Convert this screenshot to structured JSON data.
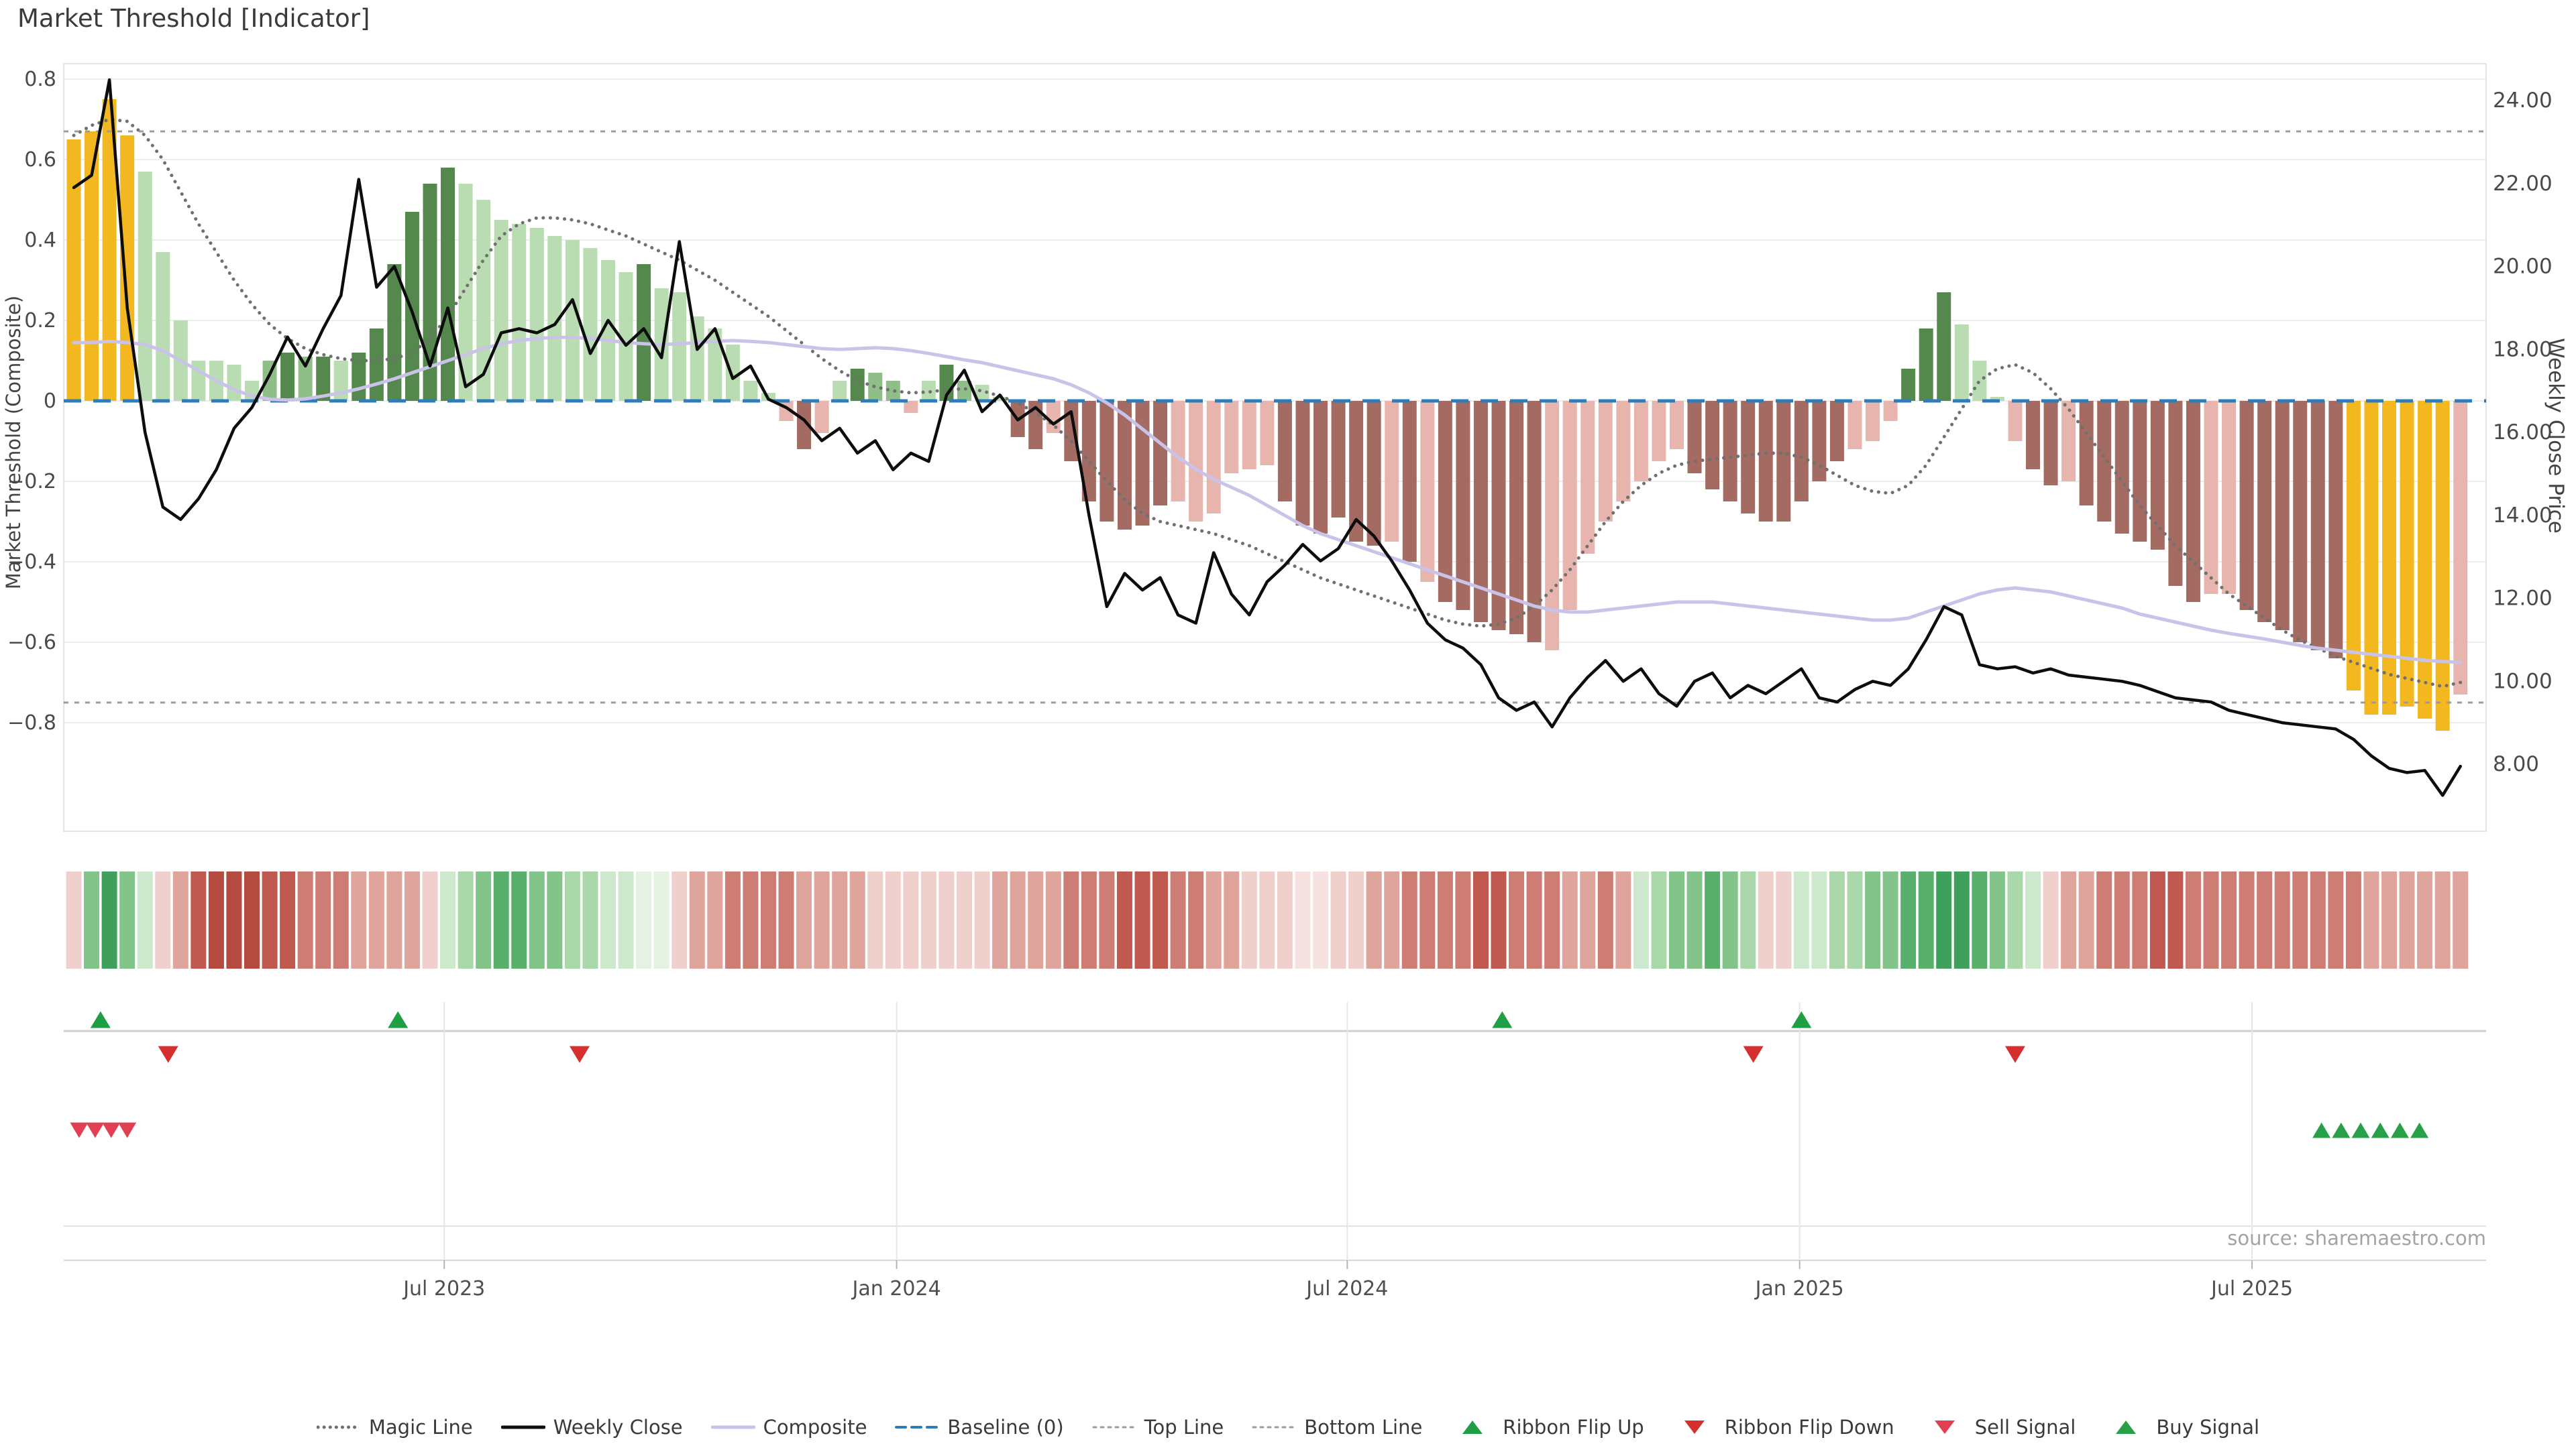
{
  "title": "Market Threshold [Indicator]",
  "source": "source: sharemaestro.com",
  "axes": {
    "left": {
      "label": "Market Threshold (Composite)",
      "ticks": [
        "0.8",
        "0.6",
        "0.4",
        "0.2",
        "0",
        "−0.2",
        "−0.4",
        "−0.6",
        "−0.8"
      ],
      "tick_values": [
        0.8,
        0.6,
        0.4,
        0.2,
        0,
        -0.2,
        -0.4,
        -0.6,
        -0.8
      ]
    },
    "right": {
      "label": "Weekly Close Price",
      "ticks": [
        "24.00",
        "22.00",
        "20.00",
        "18.00",
        "16.00",
        "14.00",
        "12.00",
        "10.00",
        "8.00"
      ],
      "tick_values": [
        24,
        22,
        20,
        18,
        16,
        14,
        12,
        10,
        8
      ]
    },
    "x": {
      "ticks": [
        {
          "label": "Jul 2023",
          "week": 20.8
        },
        {
          "label": "Jan 2024",
          "week": 46.2
        },
        {
          "label": "Jul 2024",
          "week": 71.5
        },
        {
          "label": "Jan 2025",
          "week": 96.9
        },
        {
          "label": "Jul 2025",
          "week": 122.3
        }
      ]
    }
  },
  "legend": {
    "items": [
      {
        "label": "Magic Line",
        "marker": "dotted-line",
        "color": "#707070"
      },
      {
        "label": "Weekly Close",
        "marker": "solid-line",
        "color": "#0d0d0d"
      },
      {
        "label": "Composite",
        "marker": "solid-line",
        "color": "#c9c3ea"
      },
      {
        "label": "Baseline (0)",
        "marker": "dashed-line",
        "color": "#2d7dbb"
      },
      {
        "label": "Top Line",
        "marker": "fine-dotted-line",
        "color": "#9c9c9c"
      },
      {
        "label": "Bottom Line",
        "marker": "fine-dotted-line",
        "color": "#9c9c9c"
      },
      {
        "label": "Ribbon Flip Up",
        "marker": "triangle-up",
        "color": "#1f9e44"
      },
      {
        "label": "Ribbon Flip Down",
        "marker": "triangle-down",
        "color": "#d62f2f"
      },
      {
        "label": "Sell Signal",
        "marker": "triangle-down",
        "color": "#e04050"
      },
      {
        "label": "Buy Signal",
        "marker": "triangle-up",
        "color": "#28a048"
      }
    ]
  },
  "palette": {
    "bars": {
      "au": "#f3b71f",
      "lg": "#b9dcb2",
      "mg": "#8fbe88",
      "dg": "#55884c",
      "pk": "#e7b5ad",
      "dr": "#a46b62"
    },
    "ribbon": {
      "P0": "#f6e3e1",
      "P1": "#f0d0cd",
      "P2": "#dfa49c",
      "P3": "#cd7d73",
      "P4": "#c05a50",
      "P5": "#b44a40",
      "G0": "#e4f1e3",
      "G1": "#cde8cc",
      "G2": "#abd8ab",
      "G3": "#83c48b",
      "G4": "#58b06c",
      "G5": "#3fa05c"
    },
    "weekly_close": "#0d0d0d",
    "composite": "#c9c3ea",
    "magic_line": "#707070",
    "baseline": "#2d7dbb",
    "top_bottom_line": "#9c9c9c",
    "grid": "#ededed",
    "panel_line": "#d8d8d8",
    "flip_up": "#1f9e44",
    "flip_down": "#d62f2f",
    "sell": "#e04050",
    "buy": "#28a048",
    "tick_text": "#4a4a4a"
  },
  "chart_data": {
    "type": "combo",
    "x_unit": "week-index",
    "n_points": 135,
    "ylim_left": [
      -0.9,
      0.85
    ],
    "ylim_right": [
      7.0,
      24.6
    ],
    "grid": "horizontal",
    "legend_position": "bottom-center",
    "constants": {
      "baseline": 0,
      "top_line": 0.67,
      "bottom_line": -0.75
    },
    "bars": {
      "name": "Market Threshold (Composite)",
      "values": [
        0.65,
        0.67,
        0.75,
        0.66,
        0.57,
        0.37,
        0.2,
        0.1,
        0.1,
        0.09,
        0.05,
        0.1,
        0.12,
        0.11,
        0.11,
        0.1,
        0.12,
        0.18,
        0.34,
        0.47,
        0.54,
        0.58,
        0.54,
        0.5,
        0.45,
        0.44,
        0.43,
        0.41,
        0.4,
        0.38,
        0.35,
        0.32,
        0.34,
        0.28,
        0.27,
        0.21,
        0.18,
        0.14,
        0.05,
        0.02,
        -0.05,
        -0.12,
        -0.08,
        0.05,
        0.08,
        0.07,
        0.05,
        -0.03,
        0.05,
        0.09,
        0.05,
        0.04,
        0.01,
        -0.09,
        -0.12,
        -0.08,
        -0.15,
        -0.25,
        -0.3,
        -0.32,
        -0.31,
        -0.26,
        -0.25,
        -0.3,
        -0.28,
        -0.18,
        -0.17,
        -0.16,
        -0.25,
        -0.31,
        -0.33,
        -0.29,
        -0.35,
        -0.36,
        -0.35,
        -0.4,
        -0.45,
        -0.5,
        -0.52,
        -0.55,
        -0.57,
        -0.58,
        -0.6,
        -0.62,
        -0.52,
        -0.38,
        -0.3,
        -0.25,
        -0.2,
        -0.15,
        -0.12,
        -0.18,
        -0.22,
        -0.25,
        -0.28,
        -0.3,
        -0.3,
        -0.25,
        -0.2,
        -0.15,
        -0.12,
        -0.1,
        -0.05,
        0.08,
        0.18,
        0.27,
        0.19,
        0.1,
        0.01,
        -0.1,
        -0.17,
        -0.21,
        -0.2,
        -0.26,
        -0.3,
        -0.33,
        -0.35,
        -0.37,
        -0.46,
        -0.5,
        -0.48,
        -0.48,
        -0.52,
        -0.55,
        -0.57,
        -0.6,
        -0.62,
        -0.64,
        -0.72,
        -0.78,
        -0.78,
        -0.76,
        -0.79,
        -0.82,
        -0.73
      ],
      "color_class": [
        "au",
        "au",
        "au",
        "au",
        "lg",
        "lg",
        "lg",
        "lg",
        "lg",
        "lg",
        "lg",
        "mg",
        "dg",
        "mg",
        "dg",
        "lg",
        "dg",
        "dg",
        "dg",
        "dg",
        "dg",
        "dg",
        "lg",
        "lg",
        "lg",
        "lg",
        "lg",
        "lg",
        "lg",
        "lg",
        "lg",
        "lg",
        "dg",
        "lg",
        "lg",
        "lg",
        "lg",
        "lg",
        "lg",
        "lg",
        "pk",
        "dr",
        "pk",
        "lg",
        "dg",
        "mg",
        "mg",
        "pk",
        "lg",
        "dg",
        "mg",
        "lg",
        "lg",
        "dr",
        "dr",
        "pk",
        "dr",
        "dr",
        "dr",
        "dr",
        "dr",
        "dr",
        "pk",
        "pk",
        "pk",
        "pk",
        "pk",
        "pk",
        "dr",
        "dr",
        "dr",
        "dr",
        "dr",
        "dr",
        "pk",
        "dr",
        "pk",
        "dr",
        "dr",
        "dr",
        "dr",
        "dr",
        "dr",
        "pk",
        "pk",
        "pk",
        "pk",
        "pk",
        "pk",
        "pk",
        "pk",
        "dr",
        "dr",
        "dr",
        "dr",
        "dr",
        "dr",
        "dr",
        "dr",
        "dr",
        "pk",
        "pk",
        "pk",
        "dg",
        "dg",
        "dg",
        "lg",
        "lg",
        "lg",
        "pk",
        "dr",
        "dr",
        "pk",
        "dr",
        "dr",
        "dr",
        "dr",
        "dr",
        "dr",
        "dr",
        "pk",
        "pk",
        "dr",
        "dr",
        "dr",
        "dr",
        "dr",
        "dr",
        "au",
        "au",
        "au",
        "au",
        "au",
        "au",
        "pk"
      ]
    },
    "lines": {
      "weekly_close": {
        "axis": "right",
        "values": [
          21.9,
          22.2,
          24.5,
          19.0,
          16.0,
          14.2,
          13.9,
          14.4,
          15.1,
          16.1,
          16.6,
          17.4,
          18.3,
          17.6,
          18.5,
          19.3,
          22.1,
          19.5,
          20.0,
          18.9,
          17.6,
          19.0,
          17.1,
          17.4,
          18.4,
          18.5,
          18.4,
          18.6,
          19.2,
          17.9,
          18.7,
          18.1,
          18.5,
          17.8,
          20.6,
          18.0,
          18.5,
          17.3,
          17.6,
          16.8,
          16.6,
          16.3,
          15.8,
          16.1,
          15.5,
          15.8,
          15.1,
          15.5,
          15.3,
          16.9,
          17.5,
          16.5,
          16.9,
          16.3,
          16.6,
          16.2,
          16.5,
          14.0,
          11.8,
          12.6,
          12.2,
          12.5,
          11.6,
          11.4,
          13.1,
          12.1,
          11.6,
          12.4,
          12.8,
          13.3,
          12.9,
          13.2,
          13.9,
          13.5,
          12.9,
          12.2,
          11.4,
          11.0,
          10.8,
          10.4,
          9.6,
          9.3,
          9.5,
          8.9,
          9.6,
          10.1,
          10.5,
          10.0,
          10.3,
          9.7,
          9.4,
          10.0,
          10.2,
          9.6,
          9.9,
          9.7,
          10.0,
          10.3,
          9.6,
          9.5,
          9.8,
          10.0,
          9.9,
          10.3,
          11.0,
          11.8,
          11.6,
          10.4,
          10.3,
          10.35,
          10.2,
          10.3,
          10.15,
          10.1,
          10.05,
          10.0,
          9.9,
          9.75,
          9.6,
          9.55,
          9.5,
          9.3,
          9.2,
          9.1,
          9.0,
          8.95,
          8.9,
          8.85,
          8.6,
          8.2,
          7.9,
          7.8,
          7.85,
          7.25,
          7.95
        ]
      },
      "composite": {
        "axis": "left",
        "values": [
          0.145,
          0.145,
          0.148,
          0.145,
          0.14,
          0.125,
          0.1,
          0.075,
          0.05,
          0.028,
          0.012,
          0.004,
          0.002,
          0.005,
          0.012,
          0.02,
          0.03,
          0.042,
          0.055,
          0.07,
          0.085,
          0.1,
          0.115,
          0.13,
          0.142,
          0.15,
          0.155,
          0.158,
          0.158,
          0.155,
          0.15,
          0.145,
          0.142,
          0.14,
          0.142,
          0.145,
          0.148,
          0.15,
          0.148,
          0.145,
          0.14,
          0.135,
          0.13,
          0.128,
          0.13,
          0.132,
          0.13,
          0.125,
          0.118,
          0.11,
          0.102,
          0.095,
          0.085,
          0.075,
          0.065,
          0.055,
          0.04,
          0.02,
          -0.005,
          -0.035,
          -0.07,
          -0.105,
          -0.14,
          -0.17,
          -0.195,
          -0.215,
          -0.235,
          -0.26,
          -0.285,
          -0.31,
          -0.33,
          -0.345,
          -0.36,
          -0.375,
          -0.39,
          -0.405,
          -0.42,
          -0.435,
          -0.45,
          -0.465,
          -0.48,
          -0.495,
          -0.51,
          -0.52,
          -0.525,
          -0.525,
          -0.52,
          -0.515,
          -0.51,
          -0.505,
          -0.5,
          -0.5,
          -0.5,
          -0.505,
          -0.51,
          -0.515,
          -0.52,
          -0.525,
          -0.53,
          -0.535,
          -0.54,
          -0.545,
          -0.545,
          -0.54,
          -0.525,
          -0.51,
          -0.495,
          -0.48,
          -0.47,
          -0.465,
          -0.47,
          -0.475,
          -0.485,
          -0.495,
          -0.505,
          -0.515,
          -0.53,
          -0.54,
          -0.55,
          -0.56,
          -0.57,
          -0.578,
          -0.585,
          -0.592,
          -0.6,
          -0.608,
          -0.615,
          -0.62,
          -0.625,
          -0.63,
          -0.635,
          -0.64,
          -0.645,
          -0.648,
          -0.65
        ]
      },
      "magic_line": {
        "axis": "left",
        "values": [
          0.66,
          0.685,
          0.7,
          0.695,
          0.66,
          0.6,
          0.52,
          0.44,
          0.37,
          0.3,
          0.24,
          0.19,
          0.155,
          0.13,
          0.115,
          0.105,
          0.1,
          0.1,
          0.105,
          0.12,
          0.155,
          0.21,
          0.28,
          0.35,
          0.41,
          0.44,
          0.455,
          0.455,
          0.45,
          0.44,
          0.425,
          0.41,
          0.39,
          0.37,
          0.35,
          0.325,
          0.3,
          0.27,
          0.24,
          0.21,
          0.175,
          0.14,
          0.105,
          0.075,
          0.05,
          0.035,
          0.025,
          0.02,
          0.022,
          0.028,
          0.03,
          0.025,
          0.012,
          -0.005,
          -0.03,
          -0.06,
          -0.1,
          -0.15,
          -0.2,
          -0.245,
          -0.28,
          -0.3,
          -0.31,
          -0.32,
          -0.33,
          -0.345,
          -0.36,
          -0.38,
          -0.4,
          -0.42,
          -0.44,
          -0.455,
          -0.47,
          -0.485,
          -0.5,
          -0.515,
          -0.53,
          -0.545,
          -0.555,
          -0.56,
          -0.555,
          -0.54,
          -0.51,
          -0.47,
          -0.42,
          -0.36,
          -0.3,
          -0.25,
          -0.21,
          -0.18,
          -0.16,
          -0.15,
          -0.145,
          -0.14,
          -0.135,
          -0.13,
          -0.13,
          -0.14,
          -0.16,
          -0.185,
          -0.21,
          -0.225,
          -0.23,
          -0.21,
          -0.16,
          -0.09,
          -0.02,
          0.05,
          0.08,
          0.09,
          0.07,
          0.03,
          -0.02,
          -0.08,
          -0.14,
          -0.2,
          -0.26,
          -0.31,
          -0.36,
          -0.4,
          -0.44,
          -0.48,
          -0.51,
          -0.54,
          -0.57,
          -0.595,
          -0.615,
          -0.635,
          -0.65,
          -0.665,
          -0.68,
          -0.69,
          -0.7,
          -0.71,
          -0.7
        ]
      }
    },
    "ribbon": [
      "P1",
      "G3",
      "G5",
      "G3",
      "G1",
      "P1",
      "P2",
      "P4",
      "P5",
      "P5",
      "P5",
      "P4",
      "P4",
      "P3",
      "P3",
      "P3",
      "P2",
      "P2",
      "P2",
      "P2",
      "P1",
      "G1",
      "G2",
      "G3",
      "G4",
      "G4",
      "G3",
      "G3",
      "G2",
      "G2",
      "G1",
      "G1",
      "G0",
      "G0",
      "P1",
      "P2",
      "P2",
      "P3",
      "P3",
      "P3",
      "P3",
      "P2",
      "P2",
      "P2",
      "P2",
      "P1",
      "P1",
      "P1",
      "P1",
      "P1",
      "P1",
      "P1",
      "P2",
      "P2",
      "P2",
      "P2",
      "P3",
      "P3",
      "P3",
      "P4",
      "P4",
      "P4",
      "P3",
      "P3",
      "P2",
      "P2",
      "P1",
      "P1",
      "P1",
      "P0",
      "P0",
      "P1",
      "P1",
      "P2",
      "P2",
      "P3",
      "P3",
      "P3",
      "P3",
      "P4",
      "P4",
      "P3",
      "P3",
      "P3",
      "P2",
      "P2",
      "P3",
      "P2",
      "G1",
      "G2",
      "G3",
      "G3",
      "G4",
      "G3",
      "G2",
      "P1",
      "P1",
      "G1",
      "G1",
      "G2",
      "G2",
      "G3",
      "G3",
      "G4",
      "G4",
      "G5",
      "G5",
      "G4",
      "G3",
      "G2",
      "G1",
      "P1",
      "P2",
      "P2",
      "P3",
      "P3",
      "P3",
      "P4",
      "P4",
      "P3",
      "P3",
      "P3",
      "P3",
      "P3",
      "P3",
      "P3",
      "P3",
      "P3",
      "P3",
      "P2",
      "P2",
      "P2",
      "P2",
      "P2",
      "P2"
    ],
    "signals": {
      "ribbon_flip_up": [
        1.5,
        18.2,
        80.2,
        97.0
      ],
      "ribbon_flip_down": [
        5.3,
        28.4,
        94.3,
        109.0
      ],
      "sell": [
        0.3,
        1.2,
        2.1,
        3.0
      ],
      "buy": [
        126.2,
        127.3,
        128.4,
        129.5,
        130.6,
        131.7
      ]
    }
  }
}
